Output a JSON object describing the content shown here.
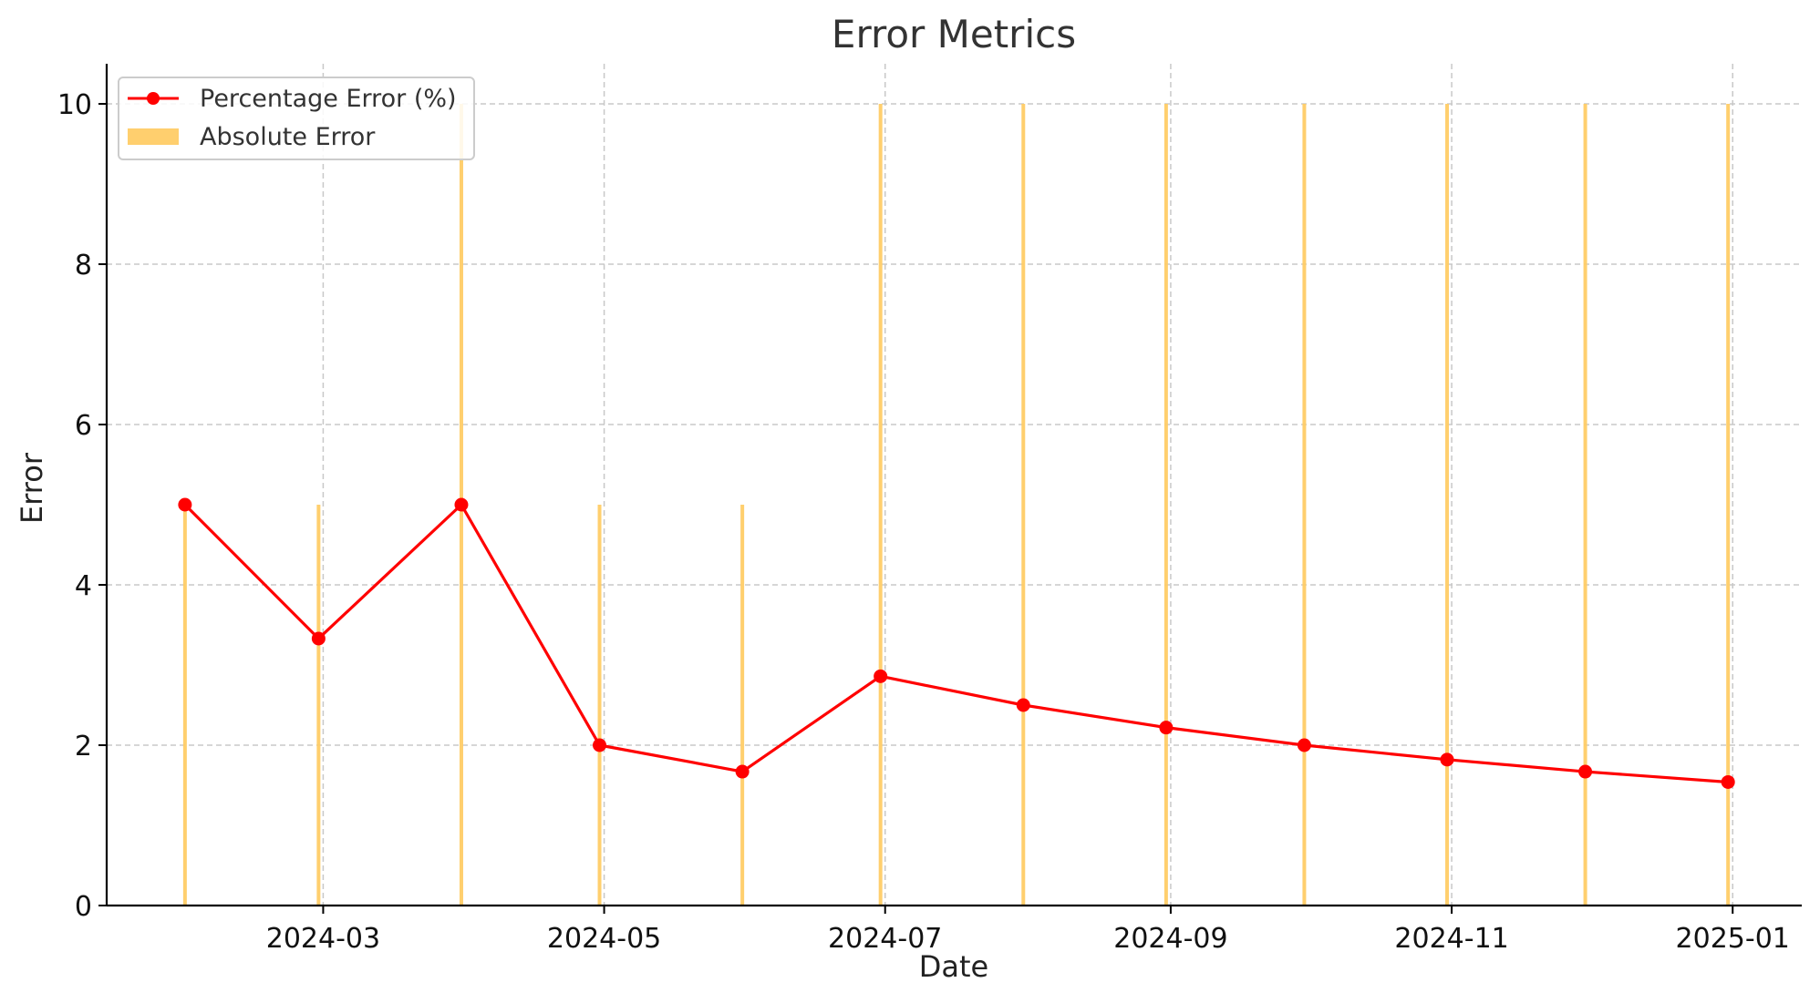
{
  "chart_data": {
    "type": "line",
    "title": "Error Metrics",
    "xlabel": "Date",
    "ylabel": "Error",
    "ylim": [
      0,
      10.5
    ],
    "xlim": [
      "2024-01-14",
      "2025-01-16"
    ],
    "grid": true,
    "legend_position": "top-left",
    "x_ticks": [
      "2024-03",
      "2024-05",
      "2024-07",
      "2024-09",
      "2024-11",
      "2025-01"
    ],
    "y_ticks": [
      "0",
      "2",
      "4",
      "6",
      "8",
      "10"
    ],
    "x": [
      "2024-01-31",
      "2024-02-29",
      "2024-03-31",
      "2024-04-30",
      "2024-05-31",
      "2024-06-30",
      "2024-07-31",
      "2024-08-31",
      "2024-09-30",
      "2024-10-31",
      "2024-11-30",
      "2024-12-31"
    ],
    "series": [
      {
        "name": "Percentage Error (%)",
        "kind": "line",
        "color": "#ff0000",
        "values": [
          5.0,
          3.33,
          5.0,
          2.0,
          1.67,
          2.86,
          2.5,
          2.22,
          2.0,
          1.82,
          1.67,
          1.54
        ]
      },
      {
        "name": "Absolute Error",
        "kind": "bar",
        "color": "#ffcc66",
        "values": [
          5,
          5,
          10,
          5,
          5,
          10,
          10,
          10,
          10,
          10,
          10,
          10
        ]
      }
    ]
  }
}
